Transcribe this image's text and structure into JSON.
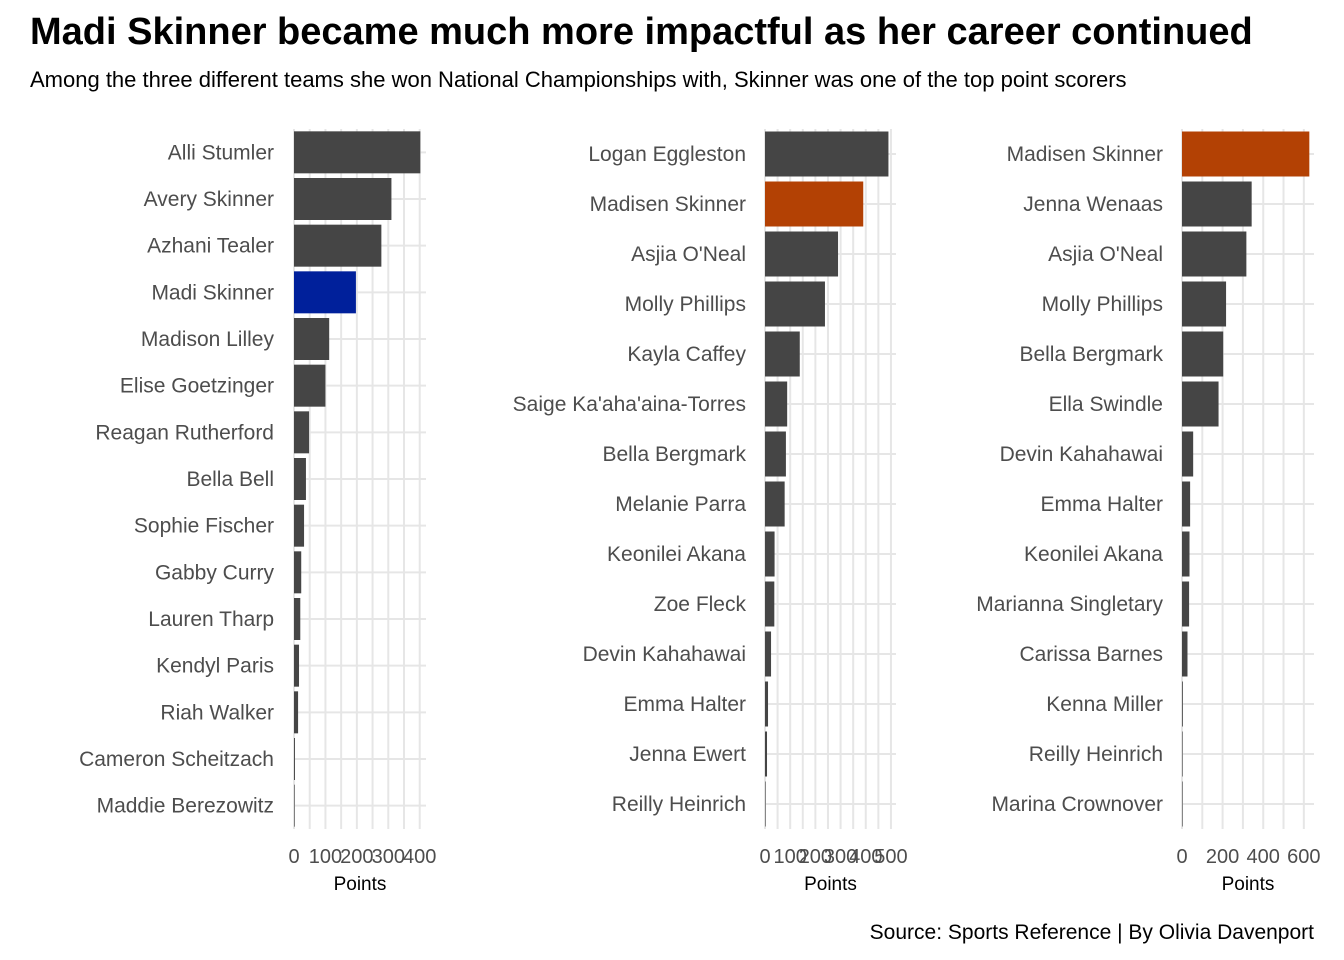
{
  "title": "Madi Skinner became much more impactful as her career continued",
  "subtitle": "Among the three different teams she won National Championships with, Skinner was one of the top point scorers",
  "caption": "Source: Sports Reference | By Olivia Davenport",
  "colors": {
    "bar": "#454545",
    "highlight_team1": "#00209b",
    "highlight_team23": "#b34104",
    "grid": "#e6e6e6"
  },
  "chart_data": [
    {
      "type": "bar",
      "orientation": "horizontal",
      "xlabel": "Points",
      "xlim": [
        0,
        420
      ],
      "xticks": [
        0,
        100,
        200,
        300,
        400
      ],
      "grid": true,
      "highlight": "Madi Skinner",
      "highlight_color": "#00209b",
      "categories": [
        "Alli Stumler",
        "Avery Skinner",
        "Azhani Tealer",
        "Madi Skinner",
        "Madison Lilley",
        "Elise Goetzinger",
        "Reagan Rutherford",
        "Bella Bell",
        "Sophie Fischer",
        "Gabby Curry",
        "Lauren Tharp",
        "Kendyl Paris",
        "Riah Walker",
        "Cameron Scheitzach",
        "Maddie Berezowitz"
      ],
      "values": [
        402,
        310,
        278,
        197,
        112,
        100,
        48,
        38,
        32,
        23,
        20,
        16,
        13,
        3,
        2
      ]
    },
    {
      "type": "bar",
      "orientation": "horizontal",
      "xlabel": "Points",
      "xlim": [
        0,
        520
      ],
      "xticks": [
        0,
        100,
        200,
        300,
        400,
        500
      ],
      "grid": true,
      "highlight": "Madisen Skinner",
      "highlight_color": "#b34104",
      "categories": [
        "Logan Eggleston",
        "Madisen Skinner",
        "Asjia O'Neal",
        "Molly Phillips",
        "Kayla Caffey",
        "Saige Ka'aha'aina-Torres",
        "Bella Bergmark",
        "Melanie Parra",
        "Keonilei Akana",
        "Zoe Fleck",
        "Devin Kahahawai",
        "Emma Halter",
        "Jenna Ewert",
        "Reilly Heinrich"
      ],
      "values": [
        490,
        390,
        290,
        238,
        138,
        88,
        83,
        78,
        38,
        37,
        24,
        12,
        8,
        2
      ]
    },
    {
      "type": "bar",
      "orientation": "horizontal",
      "xlabel": "Points",
      "xlim": [
        0,
        650
      ],
      "xticks": [
        0,
        200,
        400,
        600
      ],
      "grid": true,
      "highlight": "Madisen Skinner",
      "highlight_color": "#b34104",
      "categories": [
        "Madisen Skinner",
        "Jenna Wenaas",
        "Asjia O'Neal",
        "Molly Phillips",
        "Bella Bergmark",
        "Ella Swindle",
        "Devin Kahahawai",
        "Emma Halter",
        "Keonilei Akana",
        "Marianna Singletary",
        "Carissa Barnes",
        "Kenna Miller",
        "Reilly Heinrich",
        "Marina Crownover"
      ],
      "values": [
        627,
        343,
        317,
        217,
        203,
        180,
        55,
        40,
        37,
        35,
        27,
        4,
        2,
        0
      ]
    }
  ]
}
